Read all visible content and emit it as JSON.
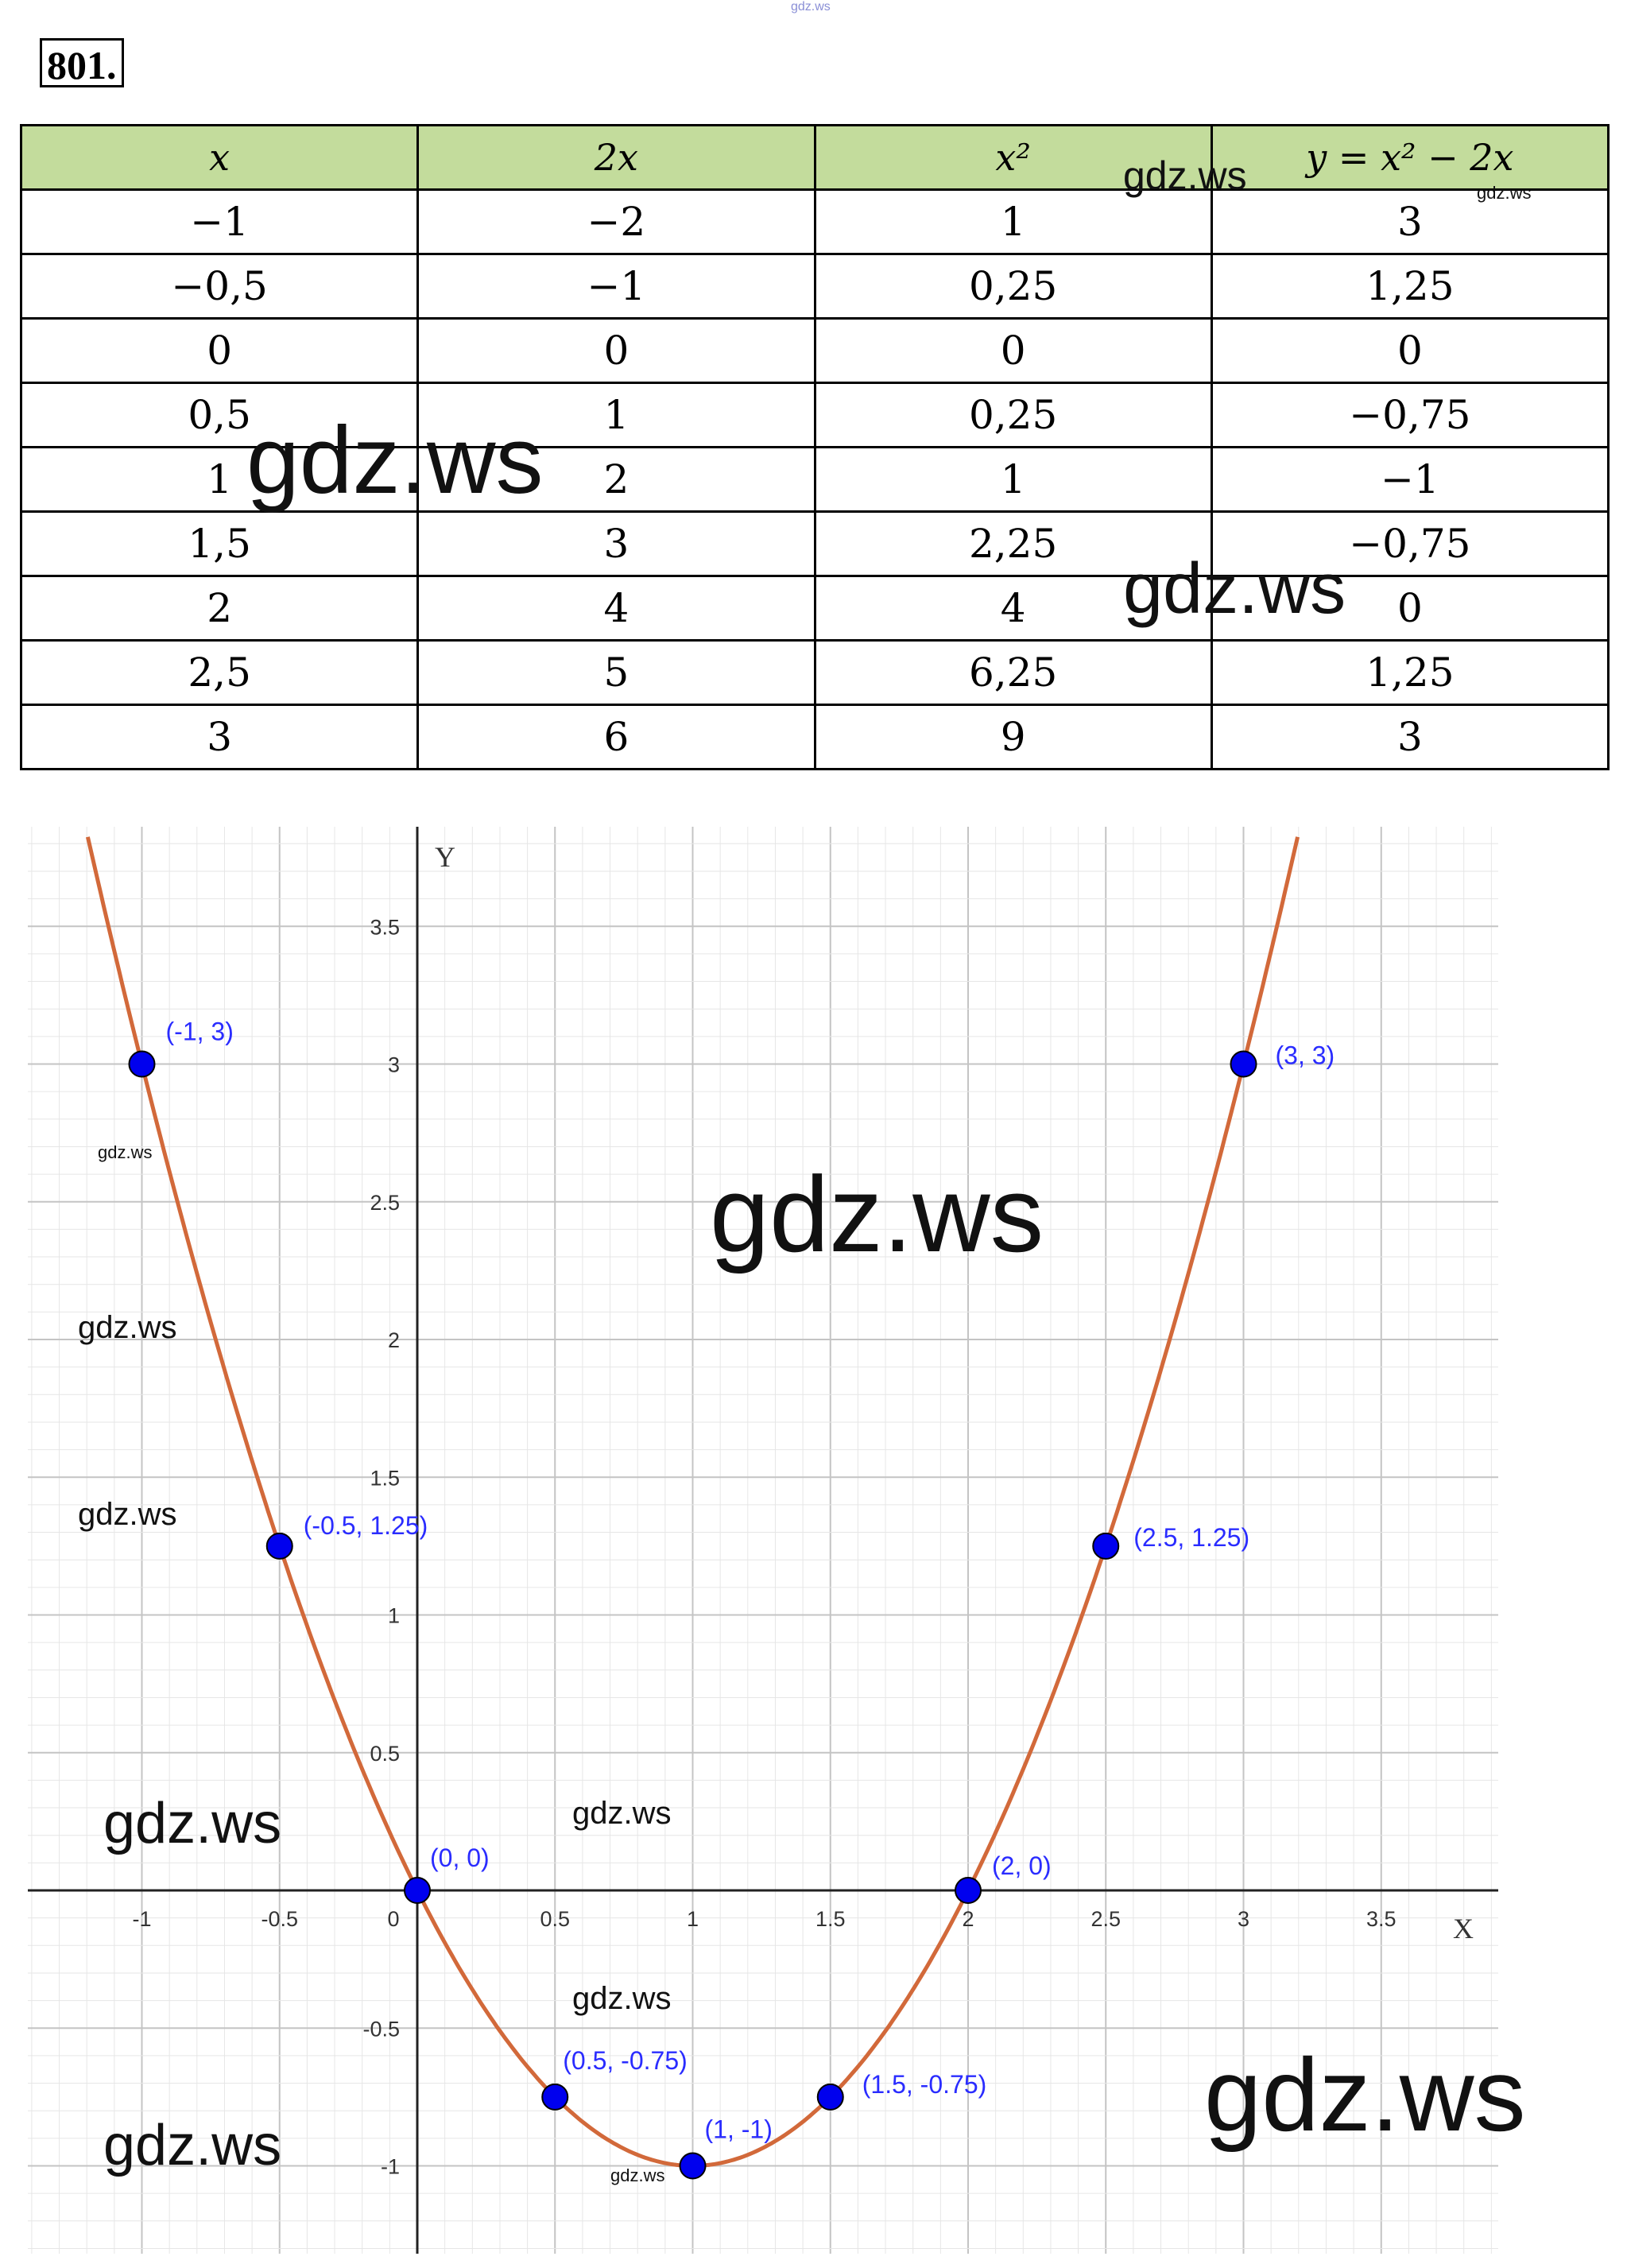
{
  "top_watermark": "gdz.ws",
  "problem_number": "801.",
  "table": {
    "headers": [
      "x",
      "2x",
      "x²",
      "y = x² − 2x"
    ],
    "rows": [
      [
        "−1",
        "−2",
        "1",
        "3"
      ],
      [
        "−0,5",
        "−1",
        "0,25",
        "1,25"
      ],
      [
        "0",
        "0",
        "0",
        "0"
      ],
      [
        "0,5",
        "1",
        "0,25",
        "−0,75"
      ],
      [
        "1",
        "2",
        "1",
        "−1"
      ],
      [
        "1,5",
        "3",
        "2,25",
        "−0,75"
      ],
      [
        "2",
        "4",
        "4",
        "0"
      ],
      [
        "2,5",
        "5",
        "6,25",
        "1,25"
      ],
      [
        "3",
        "6",
        "9",
        "3"
      ]
    ]
  },
  "watermarks": [
    "gdz.ws",
    "gdz.ws",
    "gdz.ws",
    "gdz.ws",
    "gdz.ws",
    "gdz.ws",
    "gdz.ws",
    "gdz.ws",
    "gdz.ws",
    "gdz.ws",
    "gdz.ws",
    "gdz.ws",
    "gdz.ws"
  ],
  "chart_data": {
    "type": "line",
    "xlabel": "X",
    "ylabel": "Y",
    "xlim": [
      -1.4,
      3.9
    ],
    "ylim": [
      -1.3,
      3.85
    ],
    "grid": true,
    "x_ticks": [
      "-1",
      "-0.5",
      "0",
      "0.5",
      "1",
      "1.5",
      "2",
      "2.5",
      "3",
      "3.5"
    ],
    "x_tick_values": [
      -1,
      -0.5,
      0,
      0.5,
      1,
      1.5,
      2,
      2.5,
      3,
      3.5
    ],
    "y_ticks": [
      "-1",
      "-0.5",
      "0.5",
      "1",
      "1.5",
      "2",
      "2.5",
      "3",
      "3.5"
    ],
    "y_tick_values": [
      -1,
      -0.5,
      0.5,
      1,
      1.5,
      2,
      2.5,
      3,
      3.5
    ],
    "curve": {
      "formula": "y = x^2 - 2x",
      "color": "#d2693a"
    },
    "point_color": "#0000ee",
    "points": [
      {
        "x": -1,
        "y": 3,
        "label": "(-1, 3)"
      },
      {
        "x": -0.5,
        "y": 1.25,
        "label": "(-0.5, 1.25)"
      },
      {
        "x": 0,
        "y": 0,
        "label": "(0, 0)"
      },
      {
        "x": 0.5,
        "y": -0.75,
        "label": "(0.5, -0.75)"
      },
      {
        "x": 1,
        "y": -1,
        "label": "(1, -1)"
      },
      {
        "x": 1.5,
        "y": -0.75,
        "label": "(1.5, -0.75)"
      },
      {
        "x": 2,
        "y": 0,
        "label": "(2, 0)"
      },
      {
        "x": 2.5,
        "y": 1.25,
        "label": "(2.5, 1.25)"
      },
      {
        "x": 3,
        "y": 3,
        "label": "(3, 3)"
      }
    ]
  }
}
